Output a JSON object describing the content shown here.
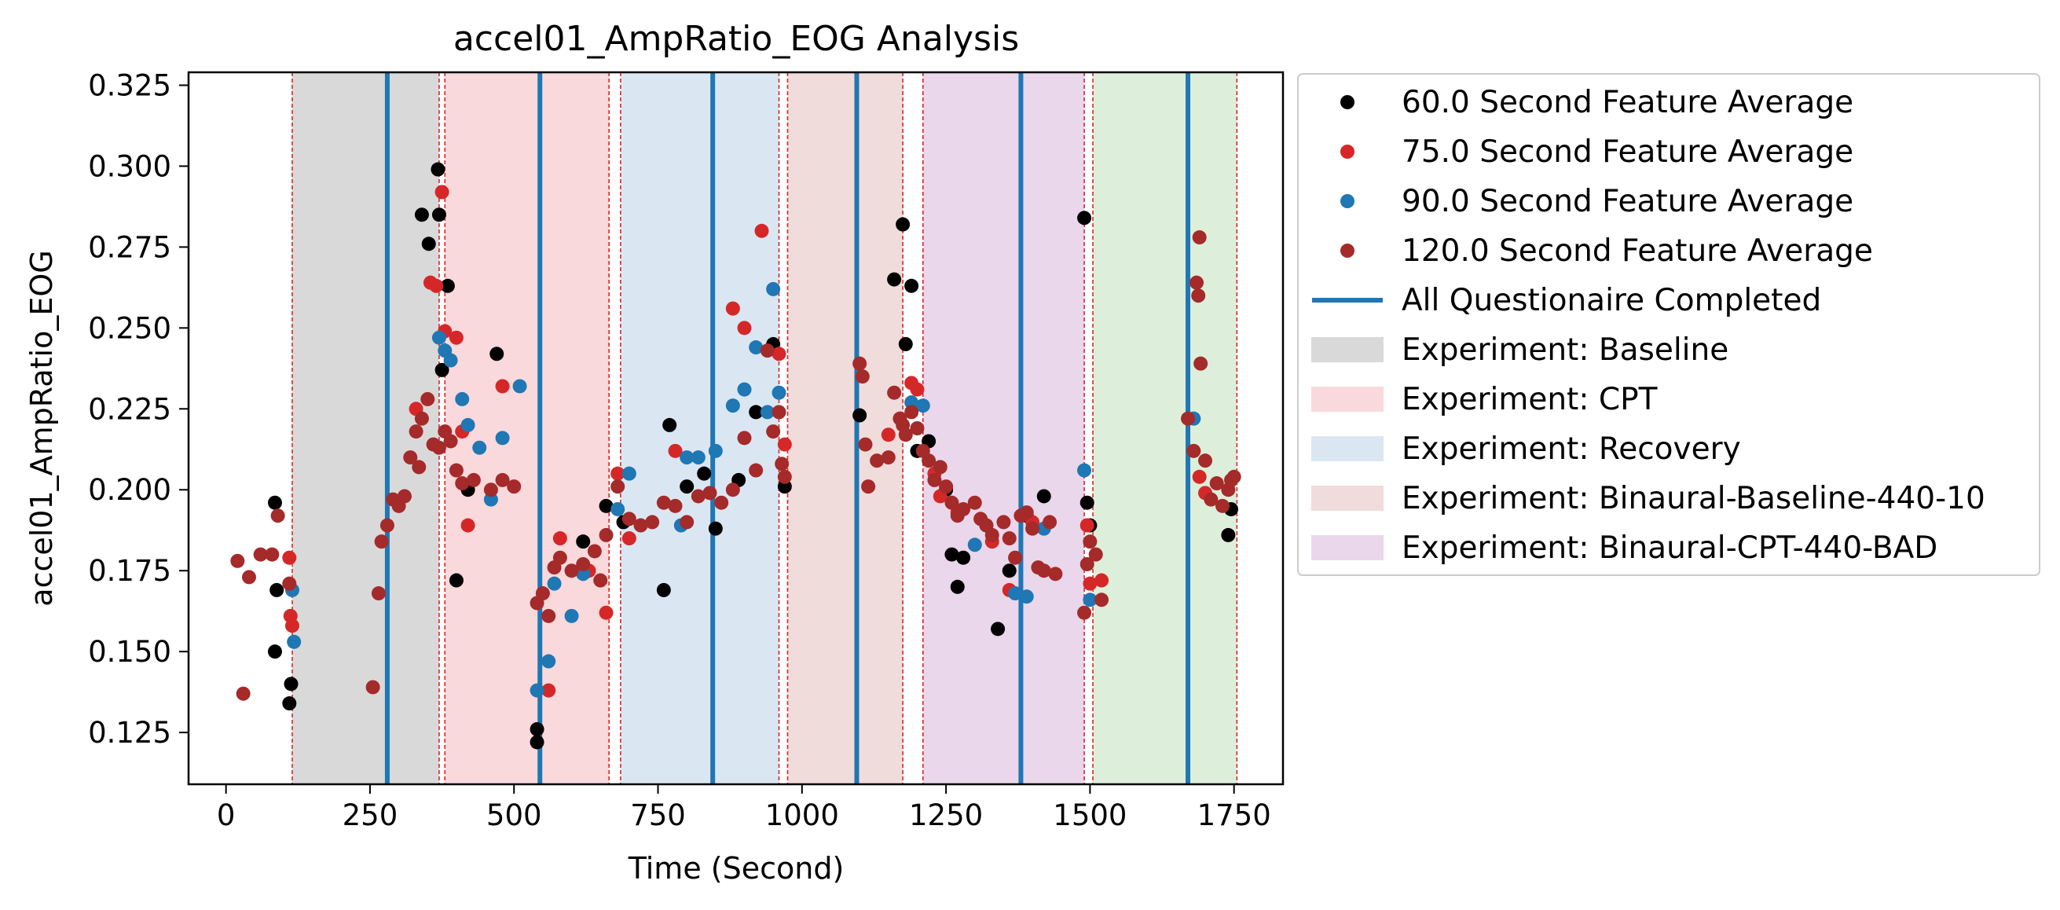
{
  "chart_data": {
    "type": "scatter",
    "title": "accel01_AmpRatio_EOG Analysis",
    "xlabel": "Time (Second)",
    "ylabel": "accel01_AmpRatio_EOG",
    "xlim": [
      -65,
      1835
    ],
    "ylim": [
      0.109,
      0.329
    ],
    "xticks": [
      0,
      250,
      500,
      750,
      1000,
      1250,
      1500,
      1750
    ],
    "yticks": [
      0.125,
      0.15,
      0.175,
      0.2,
      0.225,
      0.25,
      0.275,
      0.3,
      0.325
    ],
    "ytick_labels": [
      "0.125",
      "0.150",
      "0.175",
      "0.200",
      "0.225",
      "0.250",
      "0.275",
      "0.300",
      "0.325"
    ],
    "grid": false,
    "legend_position": "outside right",
    "series": [
      {
        "name": "60.0 Second Feature Average",
        "color": "#000000",
        "points": [
          [
            85,
            0.196
          ],
          [
            85,
            0.15
          ],
          [
            88,
            0.169
          ],
          [
            110,
            0.134
          ],
          [
            113,
            0.14
          ],
          [
            340,
            0.285
          ],
          [
            352,
            0.276
          ],
          [
            368,
            0.299
          ],
          [
            370,
            0.285
          ],
          [
            375,
            0.237
          ],
          [
            385,
            0.263
          ],
          [
            400,
            0.172
          ],
          [
            420,
            0.2
          ],
          [
            470,
            0.242
          ],
          [
            540,
            0.126
          ],
          [
            540,
            0.122
          ],
          [
            620,
            0.184
          ],
          [
            660,
            0.195
          ],
          [
            690,
            0.19
          ],
          [
            760,
            0.169
          ],
          [
            770,
            0.22
          ],
          [
            800,
            0.201
          ],
          [
            830,
            0.205
          ],
          [
            850,
            0.188
          ],
          [
            890,
            0.203
          ],
          [
            920,
            0.224
          ],
          [
            950,
            0.245
          ],
          [
            970,
            0.201
          ],
          [
            1100,
            0.223
          ],
          [
            1160,
            0.265
          ],
          [
            1175,
            0.282
          ],
          [
            1180,
            0.245
          ],
          [
            1190,
            0.263
          ],
          [
            1200,
            0.212
          ],
          [
            1220,
            0.215
          ],
          [
            1250,
            0.2
          ],
          [
            1260,
            0.18
          ],
          [
            1270,
            0.17
          ],
          [
            1280,
            0.179
          ],
          [
            1340,
            0.157
          ],
          [
            1360,
            0.175
          ],
          [
            1390,
            0.192
          ],
          [
            1420,
            0.198
          ],
          [
            1490,
            0.284
          ],
          [
            1495,
            0.196
          ],
          [
            1500,
            0.189
          ],
          [
            1740,
            0.186
          ],
          [
            1745,
            0.194
          ]
        ]
      },
      {
        "name": "75.0 Second Feature Average",
        "color": "#d62728",
        "points": [
          [
            110,
            0.179
          ],
          [
            112,
            0.161
          ],
          [
            115,
            0.158
          ],
          [
            330,
            0.225
          ],
          [
            355,
            0.264
          ],
          [
            365,
            0.263
          ],
          [
            375,
            0.292
          ],
          [
            380,
            0.249
          ],
          [
            400,
            0.247
          ],
          [
            410,
            0.218
          ],
          [
            420,
            0.189
          ],
          [
            480,
            0.232
          ],
          [
            560,
            0.138
          ],
          [
            580,
            0.185
          ],
          [
            630,
            0.175
          ],
          [
            660,
            0.162
          ],
          [
            680,
            0.205
          ],
          [
            700,
            0.185
          ],
          [
            780,
            0.212
          ],
          [
            880,
            0.256
          ],
          [
            900,
            0.25
          ],
          [
            930,
            0.28
          ],
          [
            960,
            0.242
          ],
          [
            970,
            0.214
          ],
          [
            1150,
            0.217
          ],
          [
            1190,
            0.233
          ],
          [
            1200,
            0.231
          ],
          [
            1230,
            0.205
          ],
          [
            1240,
            0.198
          ],
          [
            1270,
            0.193
          ],
          [
            1330,
            0.184
          ],
          [
            1360,
            0.169
          ],
          [
            1400,
            0.19
          ],
          [
            1495,
            0.189
          ],
          [
            1500,
            0.171
          ],
          [
            1520,
            0.172
          ],
          [
            1690,
            0.204
          ],
          [
            1700,
            0.199
          ]
        ]
      },
      {
        "name": "90.0 Second Feature Average",
        "color": "#1f77b4",
        "points": [
          [
            115,
            0.169
          ],
          [
            118,
            0.153
          ],
          [
            370,
            0.247
          ],
          [
            380,
            0.243
          ],
          [
            390,
            0.24
          ],
          [
            410,
            0.228
          ],
          [
            420,
            0.22
          ],
          [
            440,
            0.213
          ],
          [
            460,
            0.197
          ],
          [
            480,
            0.216
          ],
          [
            510,
            0.232
          ],
          [
            540,
            0.138
          ],
          [
            560,
            0.147
          ],
          [
            570,
            0.171
          ],
          [
            600,
            0.161
          ],
          [
            620,
            0.174
          ],
          [
            680,
            0.194
          ],
          [
            700,
            0.205
          ],
          [
            790,
            0.189
          ],
          [
            800,
            0.21
          ],
          [
            820,
            0.21
          ],
          [
            850,
            0.212
          ],
          [
            880,
            0.226
          ],
          [
            900,
            0.231
          ],
          [
            920,
            0.244
          ],
          [
            940,
            0.224
          ],
          [
            950,
            0.262
          ],
          [
            960,
            0.23
          ],
          [
            1190,
            0.227
          ],
          [
            1210,
            0.226
          ],
          [
            1300,
            0.183
          ],
          [
            1320,
            0.189
          ],
          [
            1370,
            0.168
          ],
          [
            1390,
            0.167
          ],
          [
            1420,
            0.188
          ],
          [
            1490,
            0.206
          ],
          [
            1500,
            0.166
          ],
          [
            1680,
            0.222
          ]
        ]
      },
      {
        "name": "120.0 Second Feature Average",
        "color": "#a52a2a",
        "points": [
          [
            20,
            0.178
          ],
          [
            30,
            0.137
          ],
          [
            40,
            0.173
          ],
          [
            60,
            0.18
          ],
          [
            80,
            0.18
          ],
          [
            90,
            0.192
          ],
          [
            110,
            0.171
          ],
          [
            255,
            0.139
          ],
          [
            265,
            0.168
          ],
          [
            270,
            0.184
          ],
          [
            280,
            0.189
          ],
          [
            290,
            0.197
          ],
          [
            300,
            0.195
          ],
          [
            310,
            0.198
          ],
          [
            320,
            0.21
          ],
          [
            330,
            0.218
          ],
          [
            335,
            0.207
          ],
          [
            340,
            0.222
          ],
          [
            350,
            0.228
          ],
          [
            360,
            0.214
          ],
          [
            370,
            0.213
          ],
          [
            380,
            0.218
          ],
          [
            390,
            0.215
          ],
          [
            400,
            0.206
          ],
          [
            410,
            0.202
          ],
          [
            430,
            0.203
          ],
          [
            460,
            0.2
          ],
          [
            480,
            0.203
          ],
          [
            500,
            0.201
          ],
          [
            540,
            0.165
          ],
          [
            550,
            0.168
          ],
          [
            560,
            0.161
          ],
          [
            570,
            0.176
          ],
          [
            580,
            0.179
          ],
          [
            600,
            0.175
          ],
          [
            620,
            0.177
          ],
          [
            640,
            0.181
          ],
          [
            650,
            0.172
          ],
          [
            660,
            0.186
          ],
          [
            680,
            0.201
          ],
          [
            700,
            0.191
          ],
          [
            720,
            0.189
          ],
          [
            740,
            0.19
          ],
          [
            760,
            0.196
          ],
          [
            780,
            0.195
          ],
          [
            800,
            0.19
          ],
          [
            820,
            0.198
          ],
          [
            840,
            0.199
          ],
          [
            860,
            0.196
          ],
          [
            880,
            0.2
          ],
          [
            900,
            0.216
          ],
          [
            920,
            0.206
          ],
          [
            940,
            0.243
          ],
          [
            950,
            0.218
          ],
          [
            960,
            0.224
          ],
          [
            965,
            0.208
          ],
          [
            970,
            0.204
          ],
          [
            1100,
            0.239
          ],
          [
            1105,
            0.235
          ],
          [
            1110,
            0.214
          ],
          [
            1115,
            0.201
          ],
          [
            1130,
            0.209
          ],
          [
            1150,
            0.21
          ],
          [
            1160,
            0.23
          ],
          [
            1170,
            0.222
          ],
          [
            1175,
            0.22
          ],
          [
            1180,
            0.217
          ],
          [
            1190,
            0.224
          ],
          [
            1200,
            0.219
          ],
          [
            1210,
            0.212
          ],
          [
            1220,
            0.209
          ],
          [
            1230,
            0.203
          ],
          [
            1240,
            0.207
          ],
          [
            1250,
            0.201
          ],
          [
            1260,
            0.196
          ],
          [
            1270,
            0.192
          ],
          [
            1280,
            0.194
          ],
          [
            1300,
            0.196
          ],
          [
            1310,
            0.191
          ],
          [
            1320,
            0.189
          ],
          [
            1330,
            0.186
          ],
          [
            1350,
            0.19
          ],
          [
            1360,
            0.185
          ],
          [
            1370,
            0.179
          ],
          [
            1380,
            0.192
          ],
          [
            1390,
            0.193
          ],
          [
            1400,
            0.188
          ],
          [
            1410,
            0.176
          ],
          [
            1420,
            0.175
          ],
          [
            1430,
            0.19
          ],
          [
            1440,
            0.174
          ],
          [
            1490,
            0.162
          ],
          [
            1495,
            0.177
          ],
          [
            1500,
            0.184
          ],
          [
            1510,
            0.18
          ],
          [
            1520,
            0.166
          ],
          [
            1670,
            0.222
          ],
          [
            1680,
            0.212
          ],
          [
            1685,
            0.264
          ],
          [
            1688,
            0.26
          ],
          [
            1690,
            0.278
          ],
          [
            1692,
            0.239
          ],
          [
            1700,
            0.209
          ],
          [
            1710,
            0.197
          ],
          [
            1720,
            0.202
          ],
          [
            1730,
            0.195
          ],
          [
            1740,
            0.2
          ],
          [
            1745,
            0.203
          ],
          [
            1750,
            0.204
          ]
        ]
      }
    ],
    "questionnaire_completed": {
      "name": "All Questionaire Completed",
      "color": "#1f77b4",
      "x": [
        280,
        545,
        845,
        1095,
        1380,
        1670
      ]
    },
    "phases": [
      {
        "name": "Experiment: Baseline",
        "color": "#d9d9d9",
        "start": 115,
        "end": 370
      },
      {
        "name": "Experiment: CPT",
        "color": "#f9d9dc",
        "start": 380,
        "end": 665
      },
      {
        "name": "Experiment: Recovery",
        "color": "#dae7f3",
        "start": 685,
        "end": 960
      },
      {
        "name": "Experiment: Binaural-Baseline-440-10",
        "color": "#f0dcdb",
        "start": 975,
        "end": 1175
      },
      {
        "name": "Experiment: Binaural-CPT-440-BAD",
        "color": "#ead7eb",
        "start": 1210,
        "end": 1490
      },
      {
        "name": "",
        "color": "#ddefdb",
        "start": 1505,
        "end": 1755
      }
    ],
    "phase_boundaries": [
      115,
      370,
      380,
      665,
      685,
      960,
      975,
      1175,
      1210,
      1490,
      1505,
      1755
    ],
    "boundary_color": "#d62728"
  },
  "legend": [
    {
      "label": "60.0 Second Feature Average",
      "kind": "marker",
      "color": "#000000"
    },
    {
      "label": "75.0 Second Feature Average",
      "kind": "marker",
      "color": "#d62728"
    },
    {
      "label": "90.0 Second Feature Average",
      "kind": "marker",
      "color": "#1f77b4"
    },
    {
      "label": "120.0 Second Feature Average",
      "kind": "marker",
      "color": "#a52a2a"
    },
    {
      "label": "All Questionaire Completed",
      "kind": "line",
      "color": "#1f77b4"
    },
    {
      "label": "Experiment: Baseline",
      "kind": "patch",
      "color": "#d9d9d9"
    },
    {
      "label": "Experiment: CPT",
      "kind": "patch",
      "color": "#f9d9dc"
    },
    {
      "label": "Experiment: Recovery",
      "kind": "patch",
      "color": "#dae7f3"
    },
    {
      "label": "Experiment: Binaural-Baseline-440-10",
      "kind": "patch",
      "color": "#f0dcdb"
    },
    {
      "label": "Experiment: Binaural-CPT-440-BAD",
      "kind": "patch",
      "color": "#ead7eb"
    }
  ]
}
